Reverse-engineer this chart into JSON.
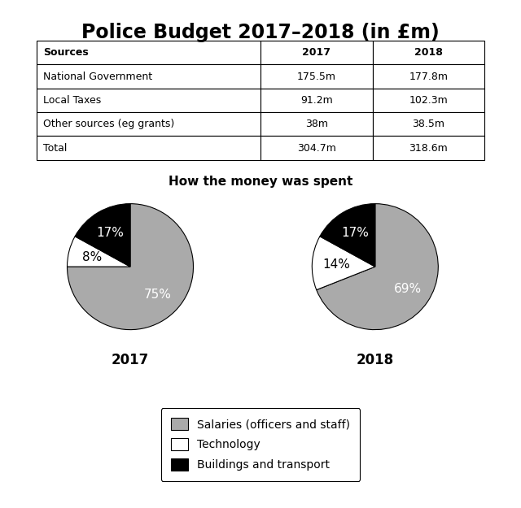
{
  "title": "Police Budget 2017–2018 (in £m)",
  "table": {
    "headers": [
      "Sources",
      "2017",
      "2018"
    ],
    "rows": [
      [
        "National Government",
        "175.5m",
        "177.8m"
      ],
      [
        "Local Taxes",
        "91.2m",
        "102.3m"
      ],
      [
        "Other sources (eg grants)",
        "38m",
        "38.5m"
      ],
      [
        "Total",
        "304.7m",
        "318.6m"
      ]
    ]
  },
  "pie_title": "How the money was spent",
  "pie_2017": {
    "label": "2017",
    "values": [
      75,
      8,
      17
    ],
    "colors": [
      "#aaaaaa",
      "#ffffff",
      "#000000"
    ],
    "labels": [
      "75%",
      "8%",
      "17%"
    ],
    "startangle": 90
  },
  "pie_2018": {
    "label": "2018",
    "values": [
      69,
      14,
      17
    ],
    "colors": [
      "#aaaaaa",
      "#ffffff",
      "#000000"
    ],
    "labels": [
      "69%",
      "14%",
      "17%"
    ],
    "startangle": 90
  },
  "legend_labels": [
    "Salaries (officers and staff)",
    "Technology",
    "Buildings and transport"
  ],
  "legend_colors": [
    "#aaaaaa",
    "#ffffff",
    "#000000"
  ],
  "background_color": "#ffffff",
  "title_fontsize": 17,
  "table_fontsize": 9,
  "pie_label_fontsize": 11,
  "pie_year_fontsize": 12,
  "pie_title_fontsize": 11,
  "legend_fontsize": 10
}
